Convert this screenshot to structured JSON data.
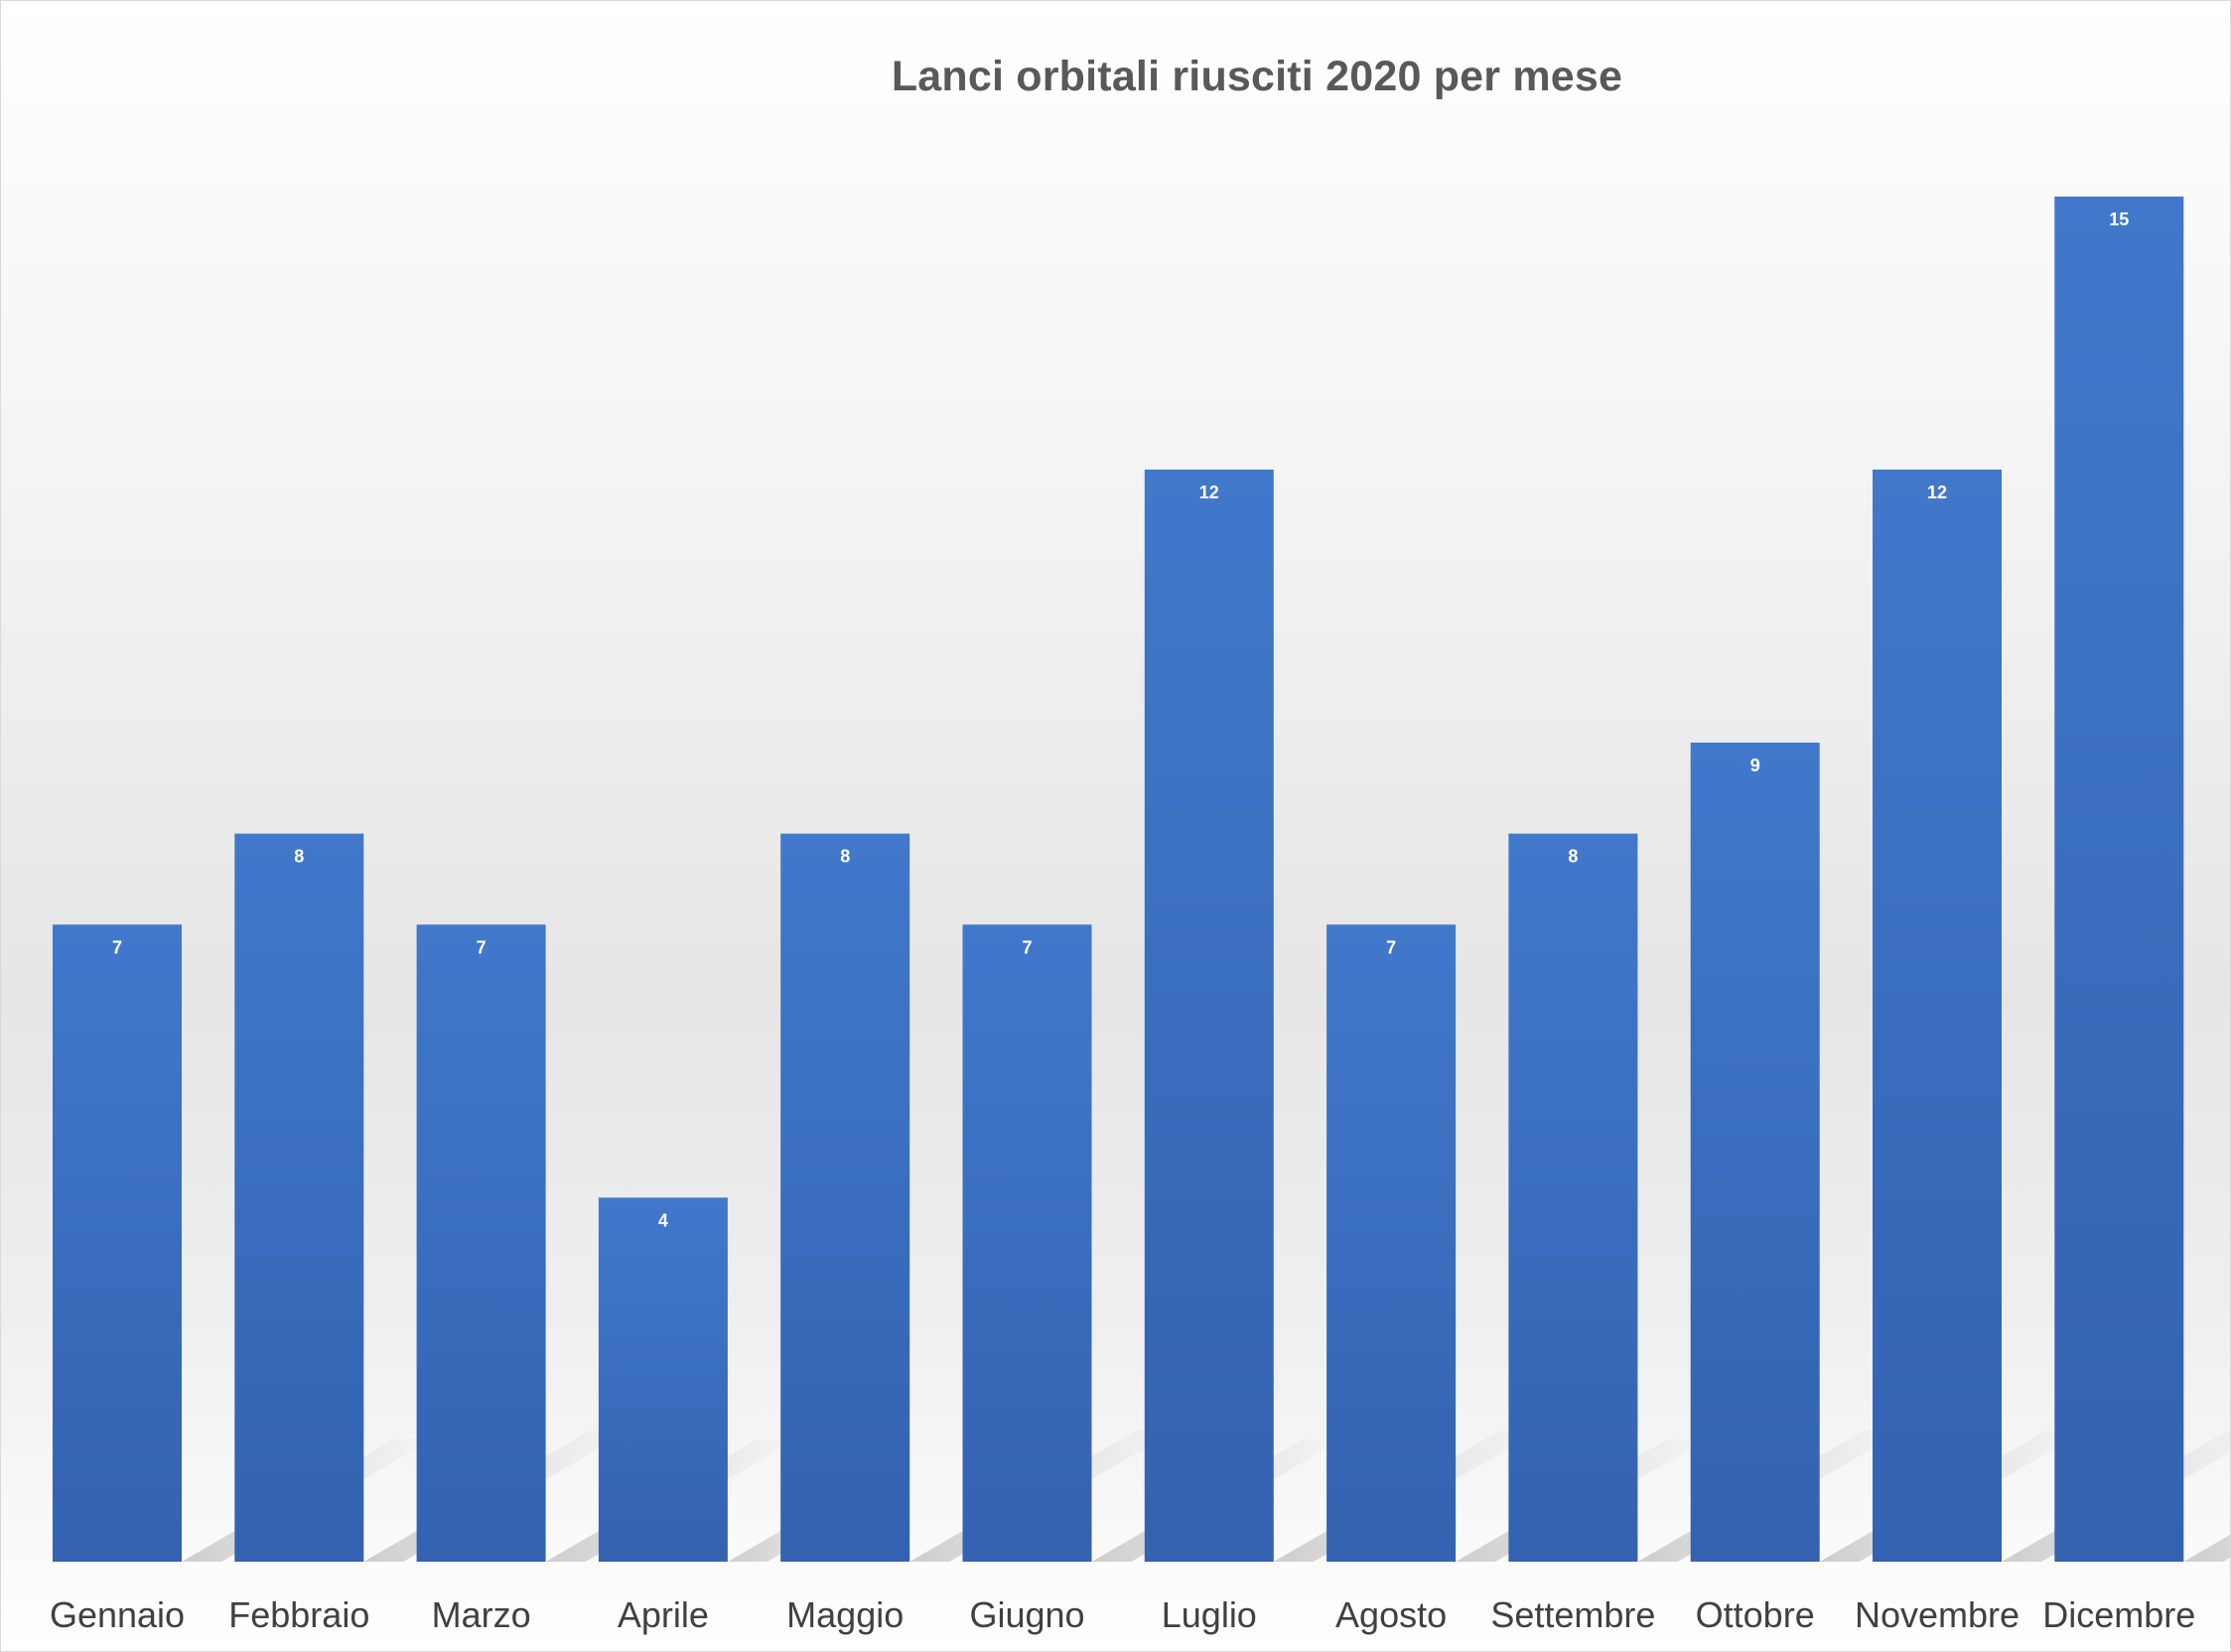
{
  "chart_data": {
    "type": "bar",
    "title": "Lanci orbitali riusciti 2020 per mese",
    "xlabel": "",
    "ylabel": "",
    "categories": [
      "Gennaio",
      "Febbraio",
      "Marzo",
      "Aprile",
      "Maggio",
      "Giugno",
      "Luglio",
      "Agosto",
      "Settembre",
      "Ottobre",
      "Novembre",
      "Dicembre"
    ],
    "values": [
      7,
      8,
      7,
      4,
      8,
      7,
      12,
      7,
      8,
      9,
      12,
      15
    ],
    "ylim": [
      0,
      15
    ],
    "grid": false,
    "legend": "none",
    "data_labels": "inside-top",
    "colors": {
      "bar_top": "#4178cb",
      "bar_bottom": "#3362b0",
      "data_label": "#ffffff",
      "title": "#595959",
      "category_label": "#404040",
      "shadow": "#c6c6c6"
    }
  }
}
